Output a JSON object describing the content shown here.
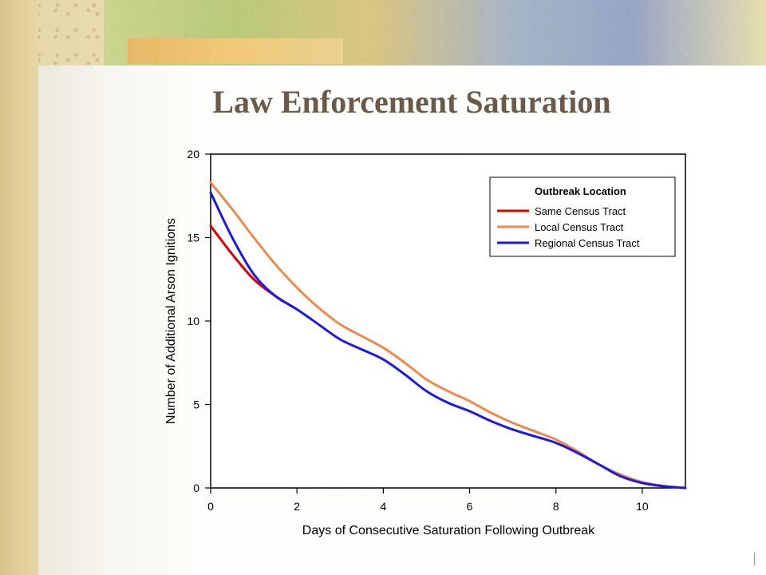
{
  "slide": {
    "title": "Law Enforcement Saturation"
  },
  "colors": {
    "same": "#dd0000",
    "local": "#f0884a",
    "regional": "#1a1ae6",
    "title": "#6b5a48"
  },
  "chart_data": {
    "type": "line",
    "title": "Law Enforcement Saturation",
    "xlabel": "Days of Consecutive Saturation Following Outbreak",
    "ylabel": "Number of Additional Arson Ignitions",
    "xlim": [
      0,
      11
    ],
    "ylim": [
      0,
      20
    ],
    "xticks": [
      0,
      2,
      4,
      6,
      8,
      10
    ],
    "yticks": [
      0,
      5,
      10,
      15,
      20
    ],
    "grid": false,
    "legend": {
      "title": "Outbreak Location",
      "placement": "top-right"
    },
    "series": [
      {
        "name": "Same Census Tract",
        "color": "#dd0000",
        "x": [
          0,
          0.5,
          1,
          1.5,
          2
        ],
        "y": [
          15.7,
          14.0,
          12.5,
          11.5,
          10.7
        ]
      },
      {
        "name": "Local Census Tract",
        "color": "#f0884a",
        "x": [
          0,
          0.5,
          1,
          1.5,
          2,
          2.5,
          3,
          3.5,
          4,
          4.5,
          5,
          5.5,
          6,
          6.5,
          7,
          7.5,
          8,
          8.5,
          9,
          9.5,
          10,
          10.5,
          11
        ],
        "y": [
          18.3,
          16.7,
          15.0,
          13.4,
          12.0,
          10.8,
          9.8,
          9.1,
          8.4,
          7.5,
          6.5,
          5.8,
          5.2,
          4.5,
          3.9,
          3.4,
          2.9,
          2.2,
          1.4,
          0.8,
          0.35,
          0.12,
          0.0
        ]
      },
      {
        "name": "Regional Census Tract",
        "color": "#1a1ae6",
        "x": [
          0,
          0.5,
          1,
          1.5,
          2,
          2.5,
          3,
          3.5,
          4,
          4.5,
          5,
          5.5,
          6,
          6.5,
          7,
          7.5,
          8,
          8.5,
          9,
          9.5,
          10,
          10.5,
          11
        ],
        "y": [
          17.7,
          15.0,
          12.8,
          11.5,
          10.7,
          9.8,
          8.9,
          8.3,
          7.7,
          6.8,
          5.8,
          5.1,
          4.6,
          4.0,
          3.5,
          3.1,
          2.7,
          2.1,
          1.4,
          0.7,
          0.3,
          0.1,
          0.0
        ]
      }
    ]
  }
}
